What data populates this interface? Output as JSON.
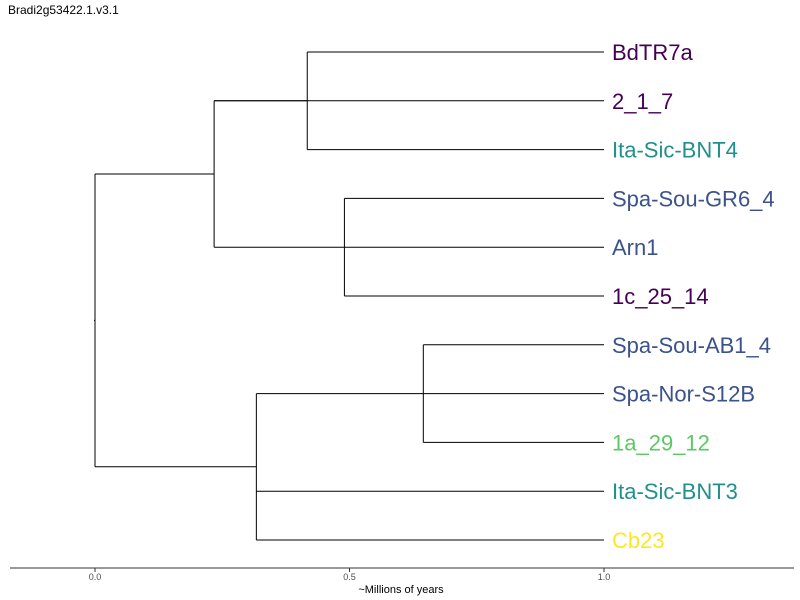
{
  "title": "Bradi2g53422.1.v3.1",
  "chart_data": {
    "type": "dendrogram",
    "xlabel": "~Millions of years",
    "xlim": [
      -0.17,
      1.38
    ],
    "xticks": [
      0.0,
      0.5,
      1.0
    ],
    "xtick_labels": [
      "0.0",
      "0.5",
      "1.0"
    ],
    "grid": false,
    "tips": [
      {
        "name": "BdTR7a",
        "color": "#440154",
        "x": 1.0
      },
      {
        "name": "2_1_7",
        "color": "#440154",
        "x": 1.0
      },
      {
        "name": "Ita-Sic-BNT4",
        "color": "#21908C",
        "x": 1.0
      },
      {
        "name": "Spa-Sou-GR6_4",
        "color": "#3B528B",
        "x": 1.0
      },
      {
        "name": "Arn1",
        "color": "#3B528B",
        "x": 1.0
      },
      {
        "name": "1c_25_14",
        "color": "#440154",
        "x": 1.0
      },
      {
        "name": "Spa-Sou-AB1_4",
        "color": "#3B528B",
        "x": 1.0
      },
      {
        "name": "Spa-Nor-S12B",
        "color": "#3B528B",
        "x": 1.0
      },
      {
        "name": "1a_29_12",
        "color": "#5DC863",
        "x": 1.0
      },
      {
        "name": "Ita-Sic-BNT3",
        "color": "#21908C",
        "x": 1.0
      },
      {
        "name": "Cb23",
        "color": "#FDE725",
        "x": 1.0
      }
    ],
    "nodes": [
      {
        "id": "n1",
        "x": 0.417,
        "children": [
          "t0",
          "t2"
        ]
      },
      {
        "id": "n2",
        "x": 0.234,
        "children": [
          "n1",
          "n3"
        ]
      },
      {
        "id": "n3",
        "x": 0.49,
        "children": [
          "t3",
          "t5"
        ]
      },
      {
        "id": "n4",
        "x": 0.0,
        "children": [
          "n2",
          "n6"
        ]
      },
      {
        "id": "n5",
        "x": 0.645,
        "children": [
          "t6",
          "t8"
        ]
      },
      {
        "id": "n6",
        "x": 0.317,
        "children": [
          "n5",
          "t10"
        ]
      }
    ],
    "branches": [
      {
        "from": "n1",
        "to": "t0"
      },
      {
        "from": "n2",
        "to": "t1"
      },
      {
        "from": "n1",
        "to": "t2"
      },
      {
        "from": "n3",
        "to": "t3"
      },
      {
        "from": "n3",
        "to": "t4"
      },
      {
        "from": "n3",
        "to": "t5"
      },
      {
        "from": "n5",
        "to": "t6"
      },
      {
        "from": "n5",
        "to": "t7"
      },
      {
        "from": "n5",
        "to": "t8"
      },
      {
        "from": "n6",
        "to": "t9"
      },
      {
        "from": "n6",
        "to": "t10"
      },
      {
        "from": "n2",
        "to": "n1"
      },
      {
        "from": "n2",
        "to": "n3"
      },
      {
        "from": "n4",
        "to": "n2"
      },
      {
        "from": "n6",
        "to": "n5"
      },
      {
        "from": "n4",
        "to": "n6"
      }
    ]
  }
}
